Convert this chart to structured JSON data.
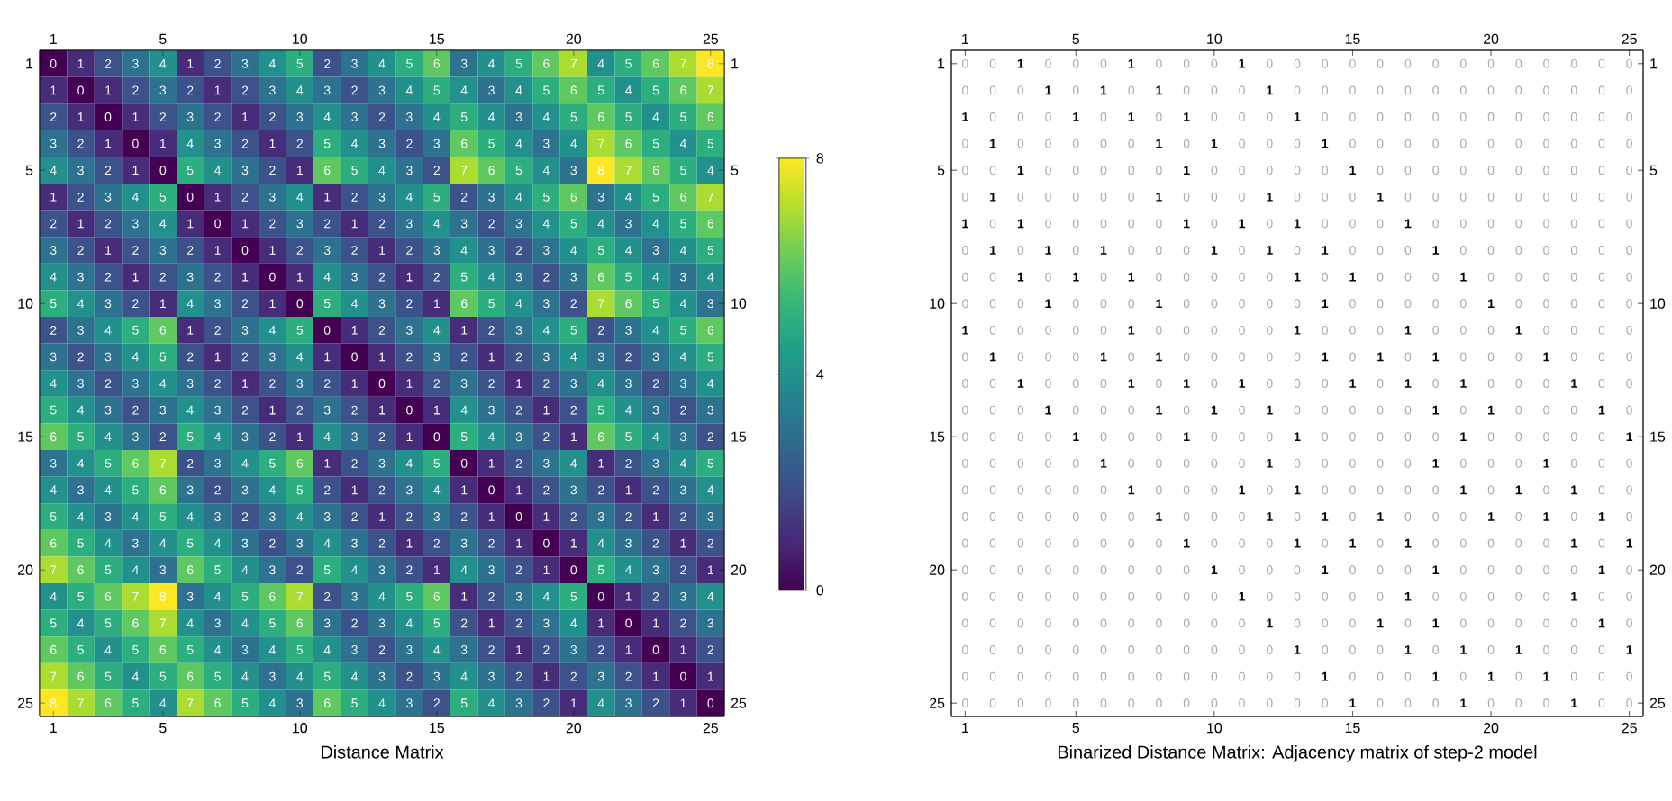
{
  "chart_data": [
    {
      "type": "heatmap",
      "xlabel": "Distance Matrix",
      "categories": [
        "1",
        null,
        null,
        null,
        "5",
        null,
        null,
        null,
        null,
        "10",
        null,
        null,
        null,
        null,
        "15",
        null,
        null,
        null,
        null,
        "20",
        null,
        null,
        null,
        null,
        "25"
      ],
      "y_categories": [
        "1",
        null,
        null,
        null,
        "5",
        null,
        null,
        null,
        null,
        "10",
        null,
        null,
        null,
        null,
        "15",
        null,
        null,
        null,
        null,
        "20",
        null,
        null,
        null,
        null,
        "25"
      ],
      "y2_categories": [
        "1",
        null,
        null,
        null,
        "5",
        null,
        null,
        null,
        null,
        "10",
        null,
        null,
        null,
        null,
        "15",
        null,
        null,
        null,
        null,
        "20",
        null,
        null,
        null,
        null,
        "25"
      ],
      "clim": [
        0,
        8
      ],
      "cticks": [
        0,
        4,
        8
      ],
      "data_labels": true,
      "cells": [
        [
          0,
          1,
          2,
          3,
          4,
          1,
          2,
          3,
          4,
          5,
          2,
          3,
          4,
          5,
          6,
          3,
          4,
          5,
          6,
          7,
          4,
          5,
          6,
          7,
          8
        ],
        [
          1,
          0,
          1,
          2,
          3,
          2,
          1,
          2,
          3,
          4,
          3,
          2,
          3,
          4,
          5,
          4,
          3,
          4,
          5,
          6,
          5,
          4,
          5,
          6,
          7
        ],
        [
          2,
          1,
          0,
          1,
          2,
          3,
          2,
          1,
          2,
          3,
          4,
          3,
          2,
          3,
          4,
          5,
          4,
          3,
          4,
          5,
          6,
          5,
          4,
          5,
          6
        ],
        [
          3,
          2,
          1,
          0,
          1,
          4,
          3,
          2,
          1,
          2,
          5,
          4,
          3,
          2,
          3,
          6,
          5,
          4,
          3,
          4,
          7,
          6,
          5,
          4,
          5
        ],
        [
          4,
          3,
          2,
          1,
          0,
          5,
          4,
          3,
          2,
          1,
          6,
          5,
          4,
          3,
          2,
          7,
          6,
          5,
          4,
          3,
          8,
          7,
          6,
          5,
          4
        ],
        [
          1,
          2,
          3,
          4,
          5,
          0,
          1,
          2,
          3,
          4,
          1,
          2,
          3,
          4,
          5,
          2,
          3,
          4,
          5,
          6,
          3,
          4,
          5,
          6,
          7
        ],
        [
          2,
          1,
          2,
          3,
          4,
          1,
          0,
          1,
          2,
          3,
          2,
          1,
          2,
          3,
          4,
          3,
          2,
          3,
          4,
          5,
          4,
          3,
          4,
          5,
          6
        ],
        [
          3,
          2,
          1,
          2,
          3,
          2,
          1,
          0,
          1,
          2,
          3,
          2,
          1,
          2,
          3,
          4,
          3,
          2,
          3,
          4,
          5,
          4,
          3,
          4,
          5
        ],
        [
          4,
          3,
          2,
          1,
          2,
          3,
          2,
          1,
          0,
          1,
          4,
          3,
          2,
          1,
          2,
          5,
          4,
          3,
          2,
          3,
          6,
          5,
          4,
          3,
          4
        ],
        [
          5,
          4,
          3,
          2,
          1,
          4,
          3,
          2,
          1,
          0,
          5,
          4,
          3,
          2,
          1,
          6,
          5,
          4,
          3,
          2,
          7,
          6,
          5,
          4,
          3
        ],
        [
          2,
          3,
          4,
          5,
          6,
          1,
          2,
          3,
          4,
          5,
          0,
          1,
          2,
          3,
          4,
          1,
          2,
          3,
          4,
          5,
          2,
          3,
          4,
          5,
          6
        ],
        [
          3,
          2,
          3,
          4,
          5,
          2,
          1,
          2,
          3,
          4,
          1,
          0,
          1,
          2,
          3,
          2,
          1,
          2,
          3,
          4,
          3,
          2,
          3,
          4,
          5
        ],
        [
          4,
          3,
          2,
          3,
          4,
          3,
          2,
          1,
          2,
          3,
          2,
          1,
          0,
          1,
          2,
          3,
          2,
          1,
          2,
          3,
          4,
          3,
          2,
          3,
          4
        ],
        [
          5,
          4,
          3,
          2,
          3,
          4,
          3,
          2,
          1,
          2,
          3,
          2,
          1,
          0,
          1,
          4,
          3,
          2,
          1,
          2,
          5,
          4,
          3,
          2,
          3
        ],
        [
          6,
          5,
          4,
          3,
          2,
          5,
          4,
          3,
          2,
          1,
          4,
          3,
          2,
          1,
          0,
          5,
          4,
          3,
          2,
          1,
          6,
          5,
          4,
          3,
          2
        ],
        [
          3,
          4,
          5,
          6,
          7,
          2,
          3,
          4,
          5,
          6,
          1,
          2,
          3,
          4,
          5,
          0,
          1,
          2,
          3,
          4,
          1,
          2,
          3,
          4,
          5
        ],
        [
          4,
          3,
          4,
          5,
          6,
          3,
          2,
          3,
          4,
          5,
          2,
          1,
          2,
          3,
          4,
          1,
          0,
          1,
          2,
          3,
          2,
          1,
          2,
          3,
          4
        ],
        [
          5,
          4,
          3,
          4,
          5,
          4,
          3,
          2,
          3,
          4,
          3,
          2,
          1,
          2,
          3,
          2,
          1,
          0,
          1,
          2,
          3,
          2,
          1,
          2,
          3
        ],
        [
          6,
          5,
          4,
          3,
          4,
          5,
          4,
          3,
          2,
          3,
          4,
          3,
          2,
          1,
          2,
          3,
          2,
          1,
          0,
          1,
          4,
          3,
          2,
          1,
          2
        ],
        [
          7,
          6,
          5,
          4,
          3,
          6,
          5,
          4,
          3,
          2,
          5,
          4,
          3,
          2,
          1,
          4,
          3,
          2,
          1,
          0,
          5,
          4,
          3,
          2,
          1
        ],
        [
          4,
          5,
          6,
          7,
          8,
          3,
          4,
          5,
          6,
          7,
          2,
          3,
          4,
          5,
          6,
          1,
          2,
          3,
          4,
          5,
          0,
          1,
          2,
          3,
          4
        ],
        [
          5,
          4,
          5,
          6,
          7,
          4,
          3,
          4,
          5,
          6,
          3,
          2,
          3,
          4,
          5,
          2,
          1,
          2,
          3,
          4,
          1,
          0,
          1,
          2,
          3
        ],
        [
          6,
          5,
          4,
          5,
          6,
          5,
          4,
          3,
          4,
          5,
          4,
          3,
          2,
          3,
          4,
          3,
          2,
          1,
          2,
          3,
          2,
          1,
          0,
          1,
          2
        ],
        [
          7,
          6,
          5,
          4,
          5,
          6,
          5,
          4,
          3,
          4,
          5,
          4,
          3,
          2,
          3,
          4,
          3,
          2,
          1,
          2,
          3,
          2,
          1,
          0,
          1
        ],
        [
          8,
          7,
          6,
          5,
          4,
          7,
          6,
          5,
          4,
          3,
          6,
          5,
          4,
          3,
          2,
          5,
          4,
          3,
          2,
          1,
          4,
          3,
          2,
          1,
          0
        ]
      ]
    },
    {
      "type": "heatmap",
      "xlabel": "Binarized Distance Matrix: Adjacency matrix of step-2 model",
      "data_labels": true,
      "categories": [
        "1",
        null,
        null,
        null,
        "5",
        null,
        null,
        null,
        null,
        "10",
        null,
        null,
        null,
        null,
        "15",
        null,
        null,
        null,
        null,
        "20",
        null,
        null,
        null,
        null,
        "25"
      ],
      "y_categories": [
        "1",
        null,
        null,
        null,
        "5",
        null,
        null,
        null,
        null,
        "10",
        null,
        null,
        null,
        null,
        "15",
        null,
        null,
        null,
        null,
        "20",
        null,
        null,
        null,
        null,
        "25"
      ],
      "y2_categories": [
        "1",
        null,
        null,
        null,
        "5",
        null,
        null,
        null,
        null,
        "10",
        null,
        null,
        null,
        null,
        "15",
        null,
        null,
        null,
        null,
        "20",
        null,
        null,
        null,
        null,
        "25"
      ],
      "cells": [
        [
          0,
          0,
          1,
          0,
          0,
          0,
          1,
          0,
          0,
          0,
          1,
          0,
          0,
          0,
          0,
          0,
          0,
          0,
          0,
          0,
          0,
          0,
          0,
          0,
          0
        ],
        [
          0,
          0,
          0,
          1,
          0,
          1,
          0,
          1,
          0,
          0,
          0,
          1,
          0,
          0,
          0,
          0,
          0,
          0,
          0,
          0,
          0,
          0,
          0,
          0,
          0
        ],
        [
          1,
          0,
          0,
          0,
          1,
          0,
          1,
          0,
          1,
          0,
          0,
          0,
          1,
          0,
          0,
          0,
          0,
          0,
          0,
          0,
          0,
          0,
          0,
          0,
          0
        ],
        [
          0,
          1,
          0,
          0,
          0,
          0,
          0,
          1,
          0,
          1,
          0,
          0,
          0,
          1,
          0,
          0,
          0,
          0,
          0,
          0,
          0,
          0,
          0,
          0,
          0
        ],
        [
          0,
          0,
          1,
          0,
          0,
          0,
          0,
          0,
          1,
          0,
          0,
          0,
          0,
          0,
          1,
          0,
          0,
          0,
          0,
          0,
          0,
          0,
          0,
          0,
          0
        ],
        [
          0,
          1,
          0,
          0,
          0,
          0,
          0,
          1,
          0,
          0,
          0,
          1,
          0,
          0,
          0,
          1,
          0,
          0,
          0,
          0,
          0,
          0,
          0,
          0,
          0
        ],
        [
          1,
          0,
          1,
          0,
          0,
          0,
          0,
          0,
          1,
          0,
          1,
          0,
          1,
          0,
          0,
          0,
          1,
          0,
          0,
          0,
          0,
          0,
          0,
          0,
          0
        ],
        [
          0,
          1,
          0,
          1,
          0,
          1,
          0,
          0,
          0,
          1,
          0,
          1,
          0,
          1,
          0,
          0,
          0,
          1,
          0,
          0,
          0,
          0,
          0,
          0,
          0
        ],
        [
          0,
          0,
          1,
          0,
          1,
          0,
          1,
          0,
          0,
          0,
          0,
          0,
          1,
          0,
          1,
          0,
          0,
          0,
          1,
          0,
          0,
          0,
          0,
          0,
          0
        ],
        [
          0,
          0,
          0,
          1,
          0,
          0,
          0,
          1,
          0,
          0,
          0,
          0,
          0,
          1,
          0,
          0,
          0,
          0,
          0,
          1,
          0,
          0,
          0,
          0,
          0
        ],
        [
          1,
          0,
          0,
          0,
          0,
          0,
          1,
          0,
          0,
          0,
          0,
          0,
          1,
          0,
          0,
          0,
          1,
          0,
          0,
          0,
          1,
          0,
          0,
          0,
          0
        ],
        [
          0,
          1,
          0,
          0,
          0,
          1,
          0,
          1,
          0,
          0,
          0,
          0,
          0,
          1,
          0,
          1,
          0,
          1,
          0,
          0,
          0,
          1,
          0,
          0,
          0
        ],
        [
          0,
          0,
          1,
          0,
          0,
          0,
          1,
          0,
          1,
          0,
          1,
          0,
          0,
          0,
          1,
          0,
          1,
          0,
          1,
          0,
          0,
          0,
          1,
          0,
          0
        ],
        [
          0,
          0,
          0,
          1,
          0,
          0,
          0,
          1,
          0,
          1,
          0,
          1,
          0,
          0,
          0,
          0,
          0,
          1,
          0,
          1,
          0,
          0,
          0,
          1,
          0
        ],
        [
          0,
          0,
          0,
          0,
          1,
          0,
          0,
          0,
          1,
          0,
          0,
          0,
          1,
          0,
          0,
          0,
          0,
          0,
          1,
          0,
          0,
          0,
          0,
          0,
          1
        ],
        [
          0,
          0,
          0,
          0,
          0,
          1,
          0,
          0,
          0,
          0,
          0,
          1,
          0,
          0,
          0,
          0,
          0,
          1,
          0,
          0,
          0,
          1,
          0,
          0,
          0
        ],
        [
          0,
          0,
          0,
          0,
          0,
          0,
          1,
          0,
          0,
          0,
          1,
          0,
          1,
          0,
          0,
          0,
          0,
          0,
          1,
          0,
          1,
          0,
          1,
          0,
          0
        ],
        [
          0,
          0,
          0,
          0,
          0,
          0,
          0,
          1,
          0,
          0,
          0,
          1,
          0,
          1,
          0,
          1,
          0,
          0,
          0,
          1,
          0,
          1,
          0,
          1,
          0
        ],
        [
          0,
          0,
          0,
          0,
          0,
          0,
          0,
          0,
          1,
          0,
          0,
          0,
          1,
          0,
          1,
          0,
          1,
          0,
          0,
          0,
          0,
          0,
          1,
          0,
          1
        ],
        [
          0,
          0,
          0,
          0,
          0,
          0,
          0,
          0,
          0,
          1,
          0,
          0,
          0,
          1,
          0,
          0,
          0,
          1,
          0,
          0,
          0,
          0,
          0,
          1,
          0
        ],
        [
          0,
          0,
          0,
          0,
          0,
          0,
          0,
          0,
          0,
          0,
          1,
          0,
          0,
          0,
          0,
          0,
          1,
          0,
          0,
          0,
          0,
          0,
          1,
          0,
          0
        ],
        [
          0,
          0,
          0,
          0,
          0,
          0,
          0,
          0,
          0,
          0,
          0,
          1,
          0,
          0,
          0,
          1,
          0,
          1,
          0,
          0,
          0,
          0,
          0,
          1,
          0
        ],
        [
          0,
          0,
          0,
          0,
          0,
          0,
          0,
          0,
          0,
          0,
          0,
          0,
          1,
          0,
          0,
          0,
          1,
          0,
          1,
          0,
          1,
          0,
          0,
          0,
          1
        ],
        [
          0,
          0,
          0,
          0,
          0,
          0,
          0,
          0,
          0,
          0,
          0,
          0,
          0,
          1,
          0,
          0,
          0,
          1,
          0,
          1,
          0,
          1,
          0,
          0,
          0
        ],
        [
          0,
          0,
          0,
          0,
          0,
          0,
          0,
          0,
          0,
          0,
          0,
          0,
          0,
          0,
          1,
          0,
          0,
          0,
          1,
          0,
          0,
          0,
          1,
          0,
          0
        ]
      ]
    }
  ]
}
